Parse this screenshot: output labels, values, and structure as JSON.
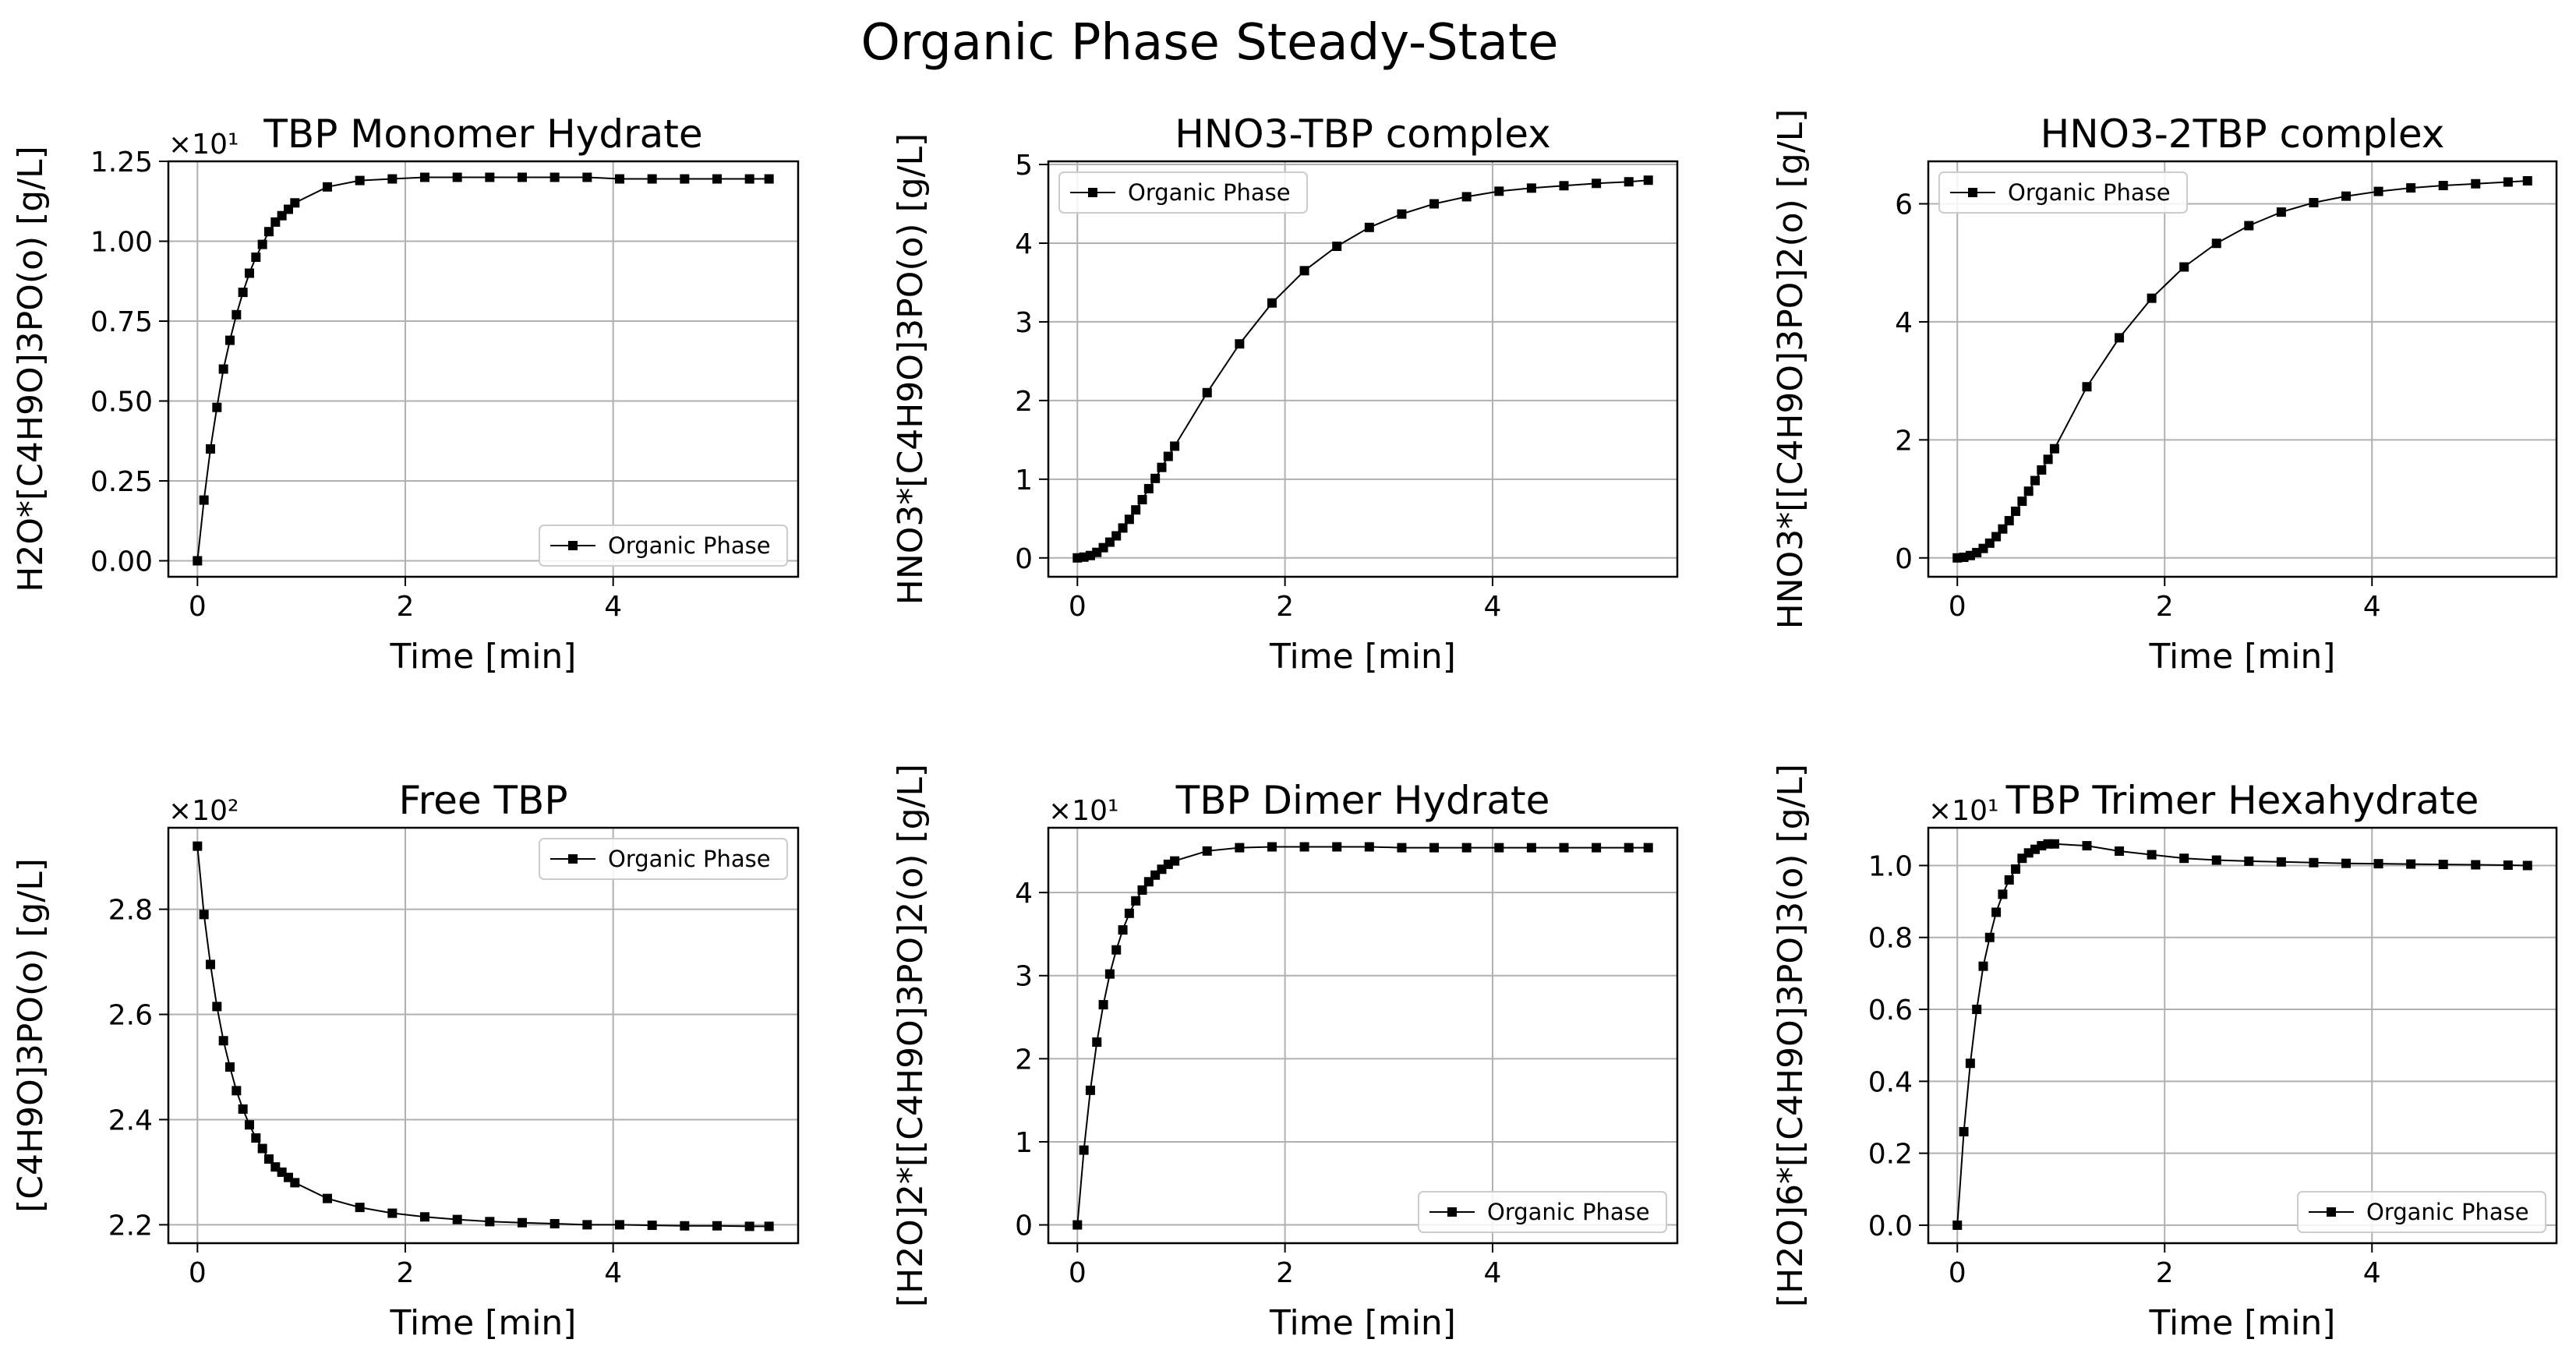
{
  "figure": {
    "suptitle": "Organic Phase Steady-State"
  },
  "chart_data": [
    {
      "type": "line",
      "title": "TBP Monomer Hydrate",
      "xlabel": "Time [min]",
      "ylabel": "H2O*[C4H9O]3PO(o) [g/L]",
      "offset_text": "×10¹",
      "xlim": [
        -0.28,
        5.78
      ],
      "ylim": [
        -0.05,
        1.25
      ],
      "xticks": [
        0,
        2,
        4
      ],
      "xtick_labels": [
        "0",
        "2",
        "4"
      ],
      "yticks": [
        0,
        0.25,
        0.5,
        0.75,
        1.0,
        1.25
      ],
      "ytick_labels": [
        "0.00",
        "0.25",
        "0.50",
        "0.75",
        "1.00",
        "1.25"
      ],
      "grid": true,
      "legend_position": "lower-right",
      "series": [
        {
          "name": "Organic Phase",
          "color": "#000000",
          "marker": "square",
          "x": [
            0,
            0.0625,
            0.125,
            0.1875,
            0.25,
            0.3125,
            0.375,
            0.4375,
            0.5,
            0.5625,
            0.625,
            0.6875,
            0.75,
            0.8125,
            0.875,
            0.9375,
            1.25,
            1.5625,
            1.875,
            2.1875,
            2.5,
            2.8125,
            3.125,
            3.4375,
            3.75,
            4.0625,
            4.375,
            4.6875,
            5.0,
            5.3125,
            5.5
          ],
          "y": [
            0,
            0.19,
            0.35,
            0.48,
            0.6,
            0.69,
            0.77,
            0.84,
            0.9,
            0.95,
            0.99,
            1.03,
            1.06,
            1.08,
            1.1,
            1.12,
            1.17,
            1.19,
            1.195,
            1.2,
            1.2,
            1.2,
            1.2,
            1.2,
            1.2,
            1.195,
            1.195,
            1.195,
            1.195,
            1.195,
            1.195
          ]
        }
      ]
    },
    {
      "type": "line",
      "title": "HNO3-TBP complex",
      "xlabel": "Time [min]",
      "ylabel": "HNO3*[C4H9O]3PO(o) [g/L]",
      "offset_text": "",
      "xlim": [
        -0.28,
        5.78
      ],
      "ylim": [
        -0.24,
        5.04
      ],
      "xticks": [
        0,
        2,
        4
      ],
      "xtick_labels": [
        "0",
        "2",
        "4"
      ],
      "yticks": [
        0,
        1,
        2,
        3,
        4,
        5
      ],
      "ytick_labels": [
        "0",
        "1",
        "2",
        "3",
        "4",
        "5"
      ],
      "grid": true,
      "legend_position": "upper-left",
      "series": [
        {
          "name": "Organic Phase",
          "color": "#000000",
          "marker": "square",
          "x": [
            0,
            0.0625,
            0.125,
            0.1875,
            0.25,
            0.3125,
            0.375,
            0.4375,
            0.5,
            0.5625,
            0.625,
            0.6875,
            0.75,
            0.8125,
            0.875,
            0.9375,
            1.25,
            1.5625,
            1.875,
            2.1875,
            2.5,
            2.8125,
            3.125,
            3.4375,
            3.75,
            4.0625,
            4.375,
            4.6875,
            5.0,
            5.3125,
            5.5
          ],
          "y": [
            0,
            0.01,
            0.03,
            0.07,
            0.13,
            0.2,
            0.28,
            0.38,
            0.49,
            0.61,
            0.74,
            0.88,
            1.01,
            1.15,
            1.29,
            1.42,
            2.1,
            2.72,
            3.24,
            3.65,
            3.96,
            4.2,
            4.37,
            4.5,
            4.59,
            4.66,
            4.7,
            4.73,
            4.76,
            4.78,
            4.8
          ]
        }
      ]
    },
    {
      "type": "line",
      "title": "HNO3-2TBP complex",
      "xlabel": "Time [min]",
      "ylabel": "HNO3*[[C4H9O]3PO]2(o) [g/L]",
      "offset_text": "",
      "xlim": [
        -0.28,
        5.78
      ],
      "ylim": [
        -0.32,
        6.72
      ],
      "xticks": [
        0,
        2,
        4
      ],
      "xtick_labels": [
        "0",
        "2",
        "4"
      ],
      "yticks": [
        0,
        2,
        4,
        6
      ],
      "ytick_labels": [
        "0",
        "2",
        "4",
        "6"
      ],
      "grid": true,
      "legend_position": "upper-left",
      "series": [
        {
          "name": "Organic Phase",
          "color": "#000000",
          "marker": "square",
          "x": [
            0,
            0.0625,
            0.125,
            0.1875,
            0.25,
            0.3125,
            0.375,
            0.4375,
            0.5,
            0.5625,
            0.625,
            0.6875,
            0.75,
            0.8125,
            0.875,
            0.9375,
            1.25,
            1.5625,
            1.875,
            2.1875,
            2.5,
            2.8125,
            3.125,
            3.4375,
            3.75,
            4.0625,
            4.375,
            4.6875,
            5.0,
            5.3125,
            5.5
          ],
          "y": [
            0,
            0.01,
            0.04,
            0.09,
            0.16,
            0.25,
            0.36,
            0.49,
            0.63,
            0.79,
            0.96,
            1.13,
            1.31,
            1.49,
            1.67,
            1.85,
            2.9,
            3.73,
            4.4,
            4.93,
            5.33,
            5.63,
            5.86,
            6.02,
            6.13,
            6.21,
            6.27,
            6.31,
            6.34,
            6.37,
            6.39
          ]
        }
      ]
    },
    {
      "type": "line",
      "title": "Free TBP",
      "xlabel": "Time [min]",
      "ylabel": "[C4H9O]3PO(o) [g/L]",
      "offset_text": "×10²",
      "xlim": [
        -0.28,
        5.78
      ],
      "ylim": [
        2.165,
        2.955
      ],
      "xticks": [
        0,
        2,
        4
      ],
      "xtick_labels": [
        "0",
        "2",
        "4"
      ],
      "yticks": [
        2.2,
        2.4,
        2.6,
        2.8
      ],
      "ytick_labels": [
        "2.2",
        "2.4",
        "2.6",
        "2.8"
      ],
      "grid": true,
      "legend_position": "upper-right",
      "series": [
        {
          "name": "Organic Phase",
          "color": "#000000",
          "marker": "square",
          "x": [
            0,
            0.0625,
            0.125,
            0.1875,
            0.25,
            0.3125,
            0.375,
            0.4375,
            0.5,
            0.5625,
            0.625,
            0.6875,
            0.75,
            0.8125,
            0.875,
            0.9375,
            1.25,
            1.5625,
            1.875,
            2.1875,
            2.5,
            2.8125,
            3.125,
            3.4375,
            3.75,
            4.0625,
            4.375,
            4.6875,
            5.0,
            5.3125,
            5.5
          ],
          "y": [
            2.92,
            2.79,
            2.695,
            2.615,
            2.55,
            2.5,
            2.455,
            2.42,
            2.39,
            2.365,
            2.345,
            2.325,
            2.31,
            2.3,
            2.29,
            2.28,
            2.25,
            2.233,
            2.222,
            2.215,
            2.21,
            2.206,
            2.204,
            2.202,
            2.2,
            2.2,
            2.199,
            2.198,
            2.198,
            2.197,
            2.197
          ]
        }
      ]
    },
    {
      "type": "line",
      "title": "TBP Dimer Hydrate",
      "xlabel": "Time [min]",
      "ylabel": "[H2O]2*[[C4H9O]3PO]2(o) [g/L]",
      "offset_text": "×10¹",
      "xlim": [
        -0.28,
        5.78
      ],
      "ylim": [
        -0.22,
        4.78
      ],
      "xticks": [
        0,
        2,
        4
      ],
      "xtick_labels": [
        "0",
        "2",
        "4"
      ],
      "yticks": [
        0,
        1,
        2,
        3,
        4
      ],
      "ytick_labels": [
        "0",
        "1",
        "2",
        "3",
        "4"
      ],
      "grid": true,
      "legend_position": "lower-right",
      "series": [
        {
          "name": "Organic Phase",
          "color": "#000000",
          "marker": "square",
          "x": [
            0,
            0.0625,
            0.125,
            0.1875,
            0.25,
            0.3125,
            0.375,
            0.4375,
            0.5,
            0.5625,
            0.625,
            0.6875,
            0.75,
            0.8125,
            0.875,
            0.9375,
            1.25,
            1.5625,
            1.875,
            2.1875,
            2.5,
            2.8125,
            3.125,
            3.4375,
            3.75,
            4.0625,
            4.375,
            4.6875,
            5.0,
            5.3125,
            5.5
          ],
          "y": [
            0,
            0.9,
            1.62,
            2.2,
            2.65,
            3.02,
            3.31,
            3.55,
            3.75,
            3.9,
            4.03,
            4.13,
            4.21,
            4.28,
            4.34,
            4.38,
            4.5,
            4.54,
            4.55,
            4.55,
            4.55,
            4.55,
            4.54,
            4.54,
            4.54,
            4.54,
            4.54,
            4.54,
            4.54,
            4.54,
            4.54
          ]
        }
      ]
    },
    {
      "type": "line",
      "title": "TBP Trimer Hexahydrate",
      "xlabel": "Time [min]",
      "ylabel": "[H2O]6*[[C4H9O]3PO]3(o) [g/L]",
      "offset_text": "×10¹",
      "xlim": [
        -0.28,
        5.78
      ],
      "ylim": [
        -0.05,
        1.105
      ],
      "xticks": [
        0,
        2,
        4
      ],
      "xtick_labels": [
        "0",
        "2",
        "4"
      ],
      "yticks": [
        0,
        0.2,
        0.4,
        0.6,
        0.8,
        1.0
      ],
      "ytick_labels": [
        "0.0",
        "0.2",
        "0.4",
        "0.6",
        "0.8",
        "1.0"
      ],
      "grid": true,
      "legend_position": "lower-right",
      "series": [
        {
          "name": "Organic Phase",
          "color": "#000000",
          "marker": "square",
          "x": [
            0,
            0.0625,
            0.125,
            0.1875,
            0.25,
            0.3125,
            0.375,
            0.4375,
            0.5,
            0.5625,
            0.625,
            0.6875,
            0.75,
            0.8125,
            0.875,
            0.9375,
            1.25,
            1.5625,
            1.875,
            2.1875,
            2.5,
            2.8125,
            3.125,
            3.4375,
            3.75,
            4.0625,
            4.375,
            4.6875,
            5.0,
            5.3125,
            5.5
          ],
          "y": [
            0,
            0.26,
            0.45,
            0.6,
            0.72,
            0.8,
            0.87,
            0.92,
            0.96,
            0.99,
            1.02,
            1.035,
            1.045,
            1.055,
            1.06,
            1.06,
            1.055,
            1.04,
            1.03,
            1.02,
            1.015,
            1.012,
            1.01,
            1.008,
            1.006,
            1.005,
            1.004,
            1.003,
            1.002,
            1.001,
            1.0
          ]
        }
      ]
    }
  ]
}
